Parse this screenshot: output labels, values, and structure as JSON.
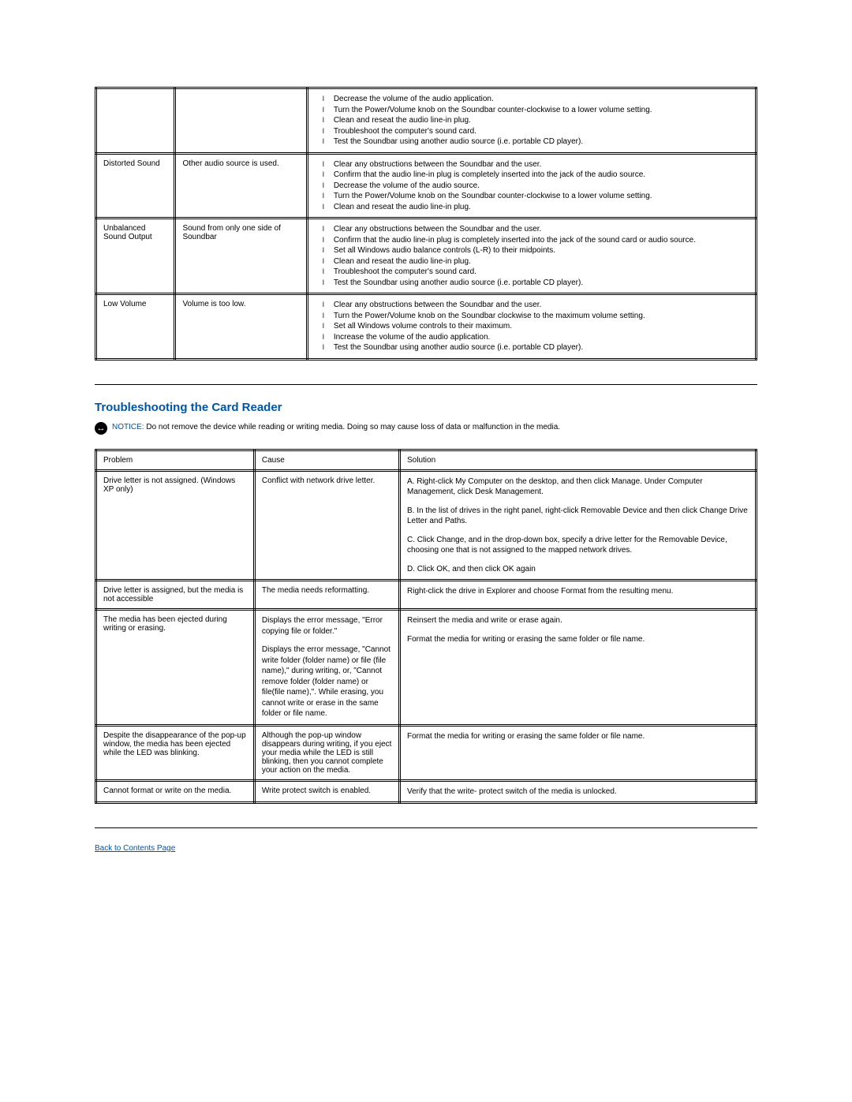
{
  "colors": {
    "heading": "#0055a5",
    "link": "#0055a5",
    "text": "#000000",
    "background": "#ffffff",
    "border": "#000000"
  },
  "sound_table": {
    "rows": [
      {
        "problem": "",
        "cause": "",
        "solution_bullets": [
          "Decrease the volume of the audio application.",
          "Turn the Power/Volume knob on the Soundbar counter-clockwise to a lower volume setting.",
          "Clean and reseat the audio line-in plug.",
          "Troubleshoot the computer's sound card.",
          "Test the Soundbar using another audio source (i.e. portable CD player)."
        ]
      },
      {
        "problem": "Distorted Sound",
        "cause": "Other audio source is used.",
        "solution_bullets": [
          "Clear any obstructions between the Soundbar and the user.",
          "Confirm that the audio line-in plug is completely inserted into the jack of the audio source.",
          "Decrease the volume of the audio source.",
          "Turn the Power/Volume knob on the Soundbar counter-clockwise to a lower volume setting.",
          "Clean and reseat the audio line-in plug."
        ]
      },
      {
        "problem": "Unbalanced Sound Output",
        "cause": "Sound from only one side of Soundbar",
        "solution_bullets": [
          "Clear any obstructions between the Soundbar and the user.",
          "Confirm that the audio line-in plug is completely inserted into the jack of the sound card or audio source.",
          "Set all Windows audio balance controls (L-R) to their midpoints.",
          "Clean and reseat the audio line-in plug.",
          "Troubleshoot the computer's sound card.",
          "Test the Soundbar using another audio source (i.e. portable CD player)."
        ]
      },
      {
        "problem": "Low Volume",
        "cause": "Volume is too low.",
        "solution_bullets": [
          "Clear any obstructions between the Soundbar and the user.",
          "Turn the Power/Volume knob on the Soundbar clockwise to the maximum volume setting.",
          "Set all Windows volume controls to their maximum.",
          "Increase the volume of the audio application.",
          "Test the Soundbar using another audio source (i.e. portable CD player)."
        ]
      }
    ]
  },
  "section2": {
    "title": "Troubleshooting the Card Reader",
    "notice_label": "NOTICE:",
    "notice_text": "Do not remove the device while reading or writing media. Doing so may cause loss of data or malfunction in the media."
  },
  "card_table": {
    "headers": {
      "c1": "Problem",
      "c2": "Cause",
      "c3": "Solution"
    },
    "rows": [
      {
        "problem": "Drive letter is not assigned. (Windows XP only)",
        "cause": "Conflict with network drive letter.",
        "solution_paras": [
          "A. Right-click My Computer on the desktop, and then click Manage. Under Computer Management, click Desk Management.",
          "B. In the list of drives in the right panel, right-click Removable Device and then click Change Drive Letter and Paths.",
          "C. Click Change, and in the drop-down box, specify a drive letter for the Removable Device, choosing one that is not assigned to the mapped network drives.",
          "D. Click OK, and then click OK again"
        ]
      },
      {
        "problem": "Drive letter is assigned, but the media is not accessible",
        "cause": "The media needs reformatting.",
        "solution_paras": [
          "Right-click the drive in Explorer and choose Format from the resulting menu."
        ]
      },
      {
        "problem": "The media has been ejected during writing or erasing.",
        "cause_paras": [
          "Displays the error message, \"Error copying file or folder.\"",
          "Displays the error message, \"Cannot write folder (folder name) or file (file name),\" during writing, or, \"Cannot remove folder (folder name) or file(file name),\". While erasing, you cannot write or erase in the same folder or file name."
        ],
        "solution_paras": [
          "Reinsert the media and write or erase again.",
          "Format the media for writing or erasing the same folder or file name."
        ]
      },
      {
        "problem": "Despite the disappearance of the pop-up window, the media has been ejected while the LED was blinking.",
        "cause": "Although the pop-up window disappears during writing, if you eject your media while the LED is still blinking, then you cannot complete your action on the media.",
        "solution_paras": [
          "Format the media for writing or erasing the same folder or file name."
        ]
      },
      {
        "problem": "Cannot format or write on the media.",
        "cause": "Write protect switch is enabled.",
        "solution_paras": [
          "Verify that the write- protect switch of the media is unlocked."
        ]
      }
    ]
  },
  "back_link": "Back to Contents Page"
}
